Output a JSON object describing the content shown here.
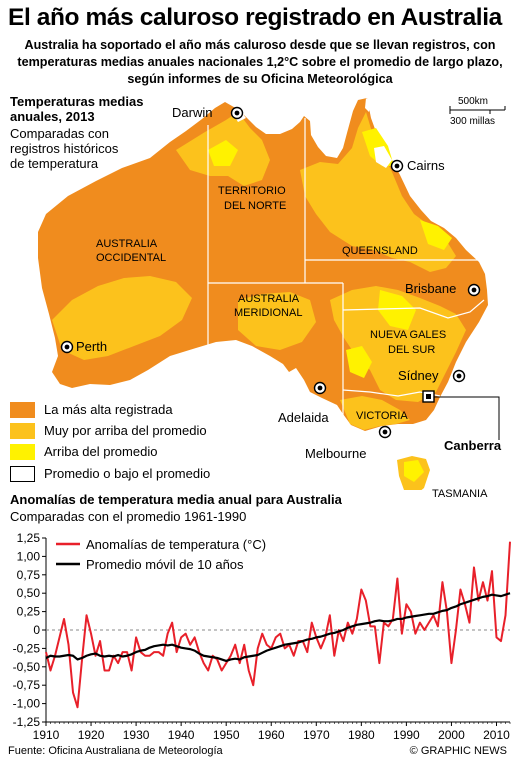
{
  "title": "El año más caluroso registrado en Australia",
  "subtitle": "Australia ha soportado el año más caluroso desde que se llevan registros, con temperaturas medias anuales nacionales 1,2°C sobre el promedio de largo plazo, según informes de su Oficina Meteorológica",
  "map": {
    "heading": "Temperaturas medias anuales, 2013",
    "subheading": "Comparadas con registros históricos de temperatura",
    "scale_km": "500km",
    "scale_mi": "300 millas",
    "regions": {
      "wa_1": "AUSTRALIA",
      "wa_2": "OCCIDENTAL",
      "nt_1": "TERRITORIO",
      "nt_2": "DEL NORTE",
      "qld": "QUEENSLAND",
      "sa_1": "AUSTRALIA",
      "sa_2": "MERIDIONAL",
      "nsw_1": "NUEVA GALES",
      "nsw_2": "DEL SUR",
      "vic": "VICTORIA",
      "tas": "TASMANIA"
    },
    "cities": {
      "darwin": "Darwin",
      "cairns": "Cairns",
      "brisbane": "Brisbane",
      "perth": "Perth",
      "adelaida": "Adelaida",
      "sydney": "Sídney",
      "melbourne": "Melbourne",
      "canberra": "Canberra"
    },
    "legend": [
      {
        "label": "La más alta registrada",
        "color": "#f08c1e"
      },
      {
        "label": "Muy por arriba del promedio",
        "color": "#fcc21c"
      },
      {
        "label": "Arriba del promedio",
        "color": "#fff200"
      },
      {
        "label": "Promedio o bajo el promedio",
        "color": "#ffffff"
      }
    ]
  },
  "chart_heading": "Anomalías de temperatura media anual para Australia",
  "chart_subheading": "Comparadas con el promedio 1961-1990",
  "chart_data": {
    "type": "line",
    "title": "Anomalías de temperatura media anual para Australia",
    "subtitle": "Comparadas con el promedio 1961-1990",
    "xlabel": "",
    "ylabel": "",
    "xlim": [
      1910,
      2013
    ],
    "ylim": [
      -1.25,
      1.25
    ],
    "xticks": [
      "1910",
      "1920",
      "1930",
      "1940",
      "1950",
      "1960",
      "1970",
      "1980",
      "1990",
      "2000",
      "2010"
    ],
    "yticks": [
      "1,25",
      "1,00",
      "0,75",
      "0,50",
      "0,25",
      "0",
      "-0,25",
      "-0,50",
      "-0,75",
      "-1,00",
      "-1,25"
    ],
    "grid": false,
    "legend_position": "top-left",
    "x": [
      1910,
      1911,
      1912,
      1913,
      1914,
      1915,
      1916,
      1917,
      1918,
      1919,
      1920,
      1921,
      1922,
      1923,
      1924,
      1925,
      1926,
      1927,
      1928,
      1929,
      1930,
      1931,
      1932,
      1933,
      1934,
      1935,
      1936,
      1937,
      1938,
      1939,
      1940,
      1941,
      1942,
      1943,
      1944,
      1945,
      1946,
      1947,
      1948,
      1949,
      1950,
      1951,
      1952,
      1953,
      1954,
      1955,
      1956,
      1957,
      1958,
      1959,
      1960,
      1961,
      1962,
      1963,
      1964,
      1965,
      1966,
      1967,
      1968,
      1969,
      1970,
      1971,
      1972,
      1973,
      1974,
      1975,
      1976,
      1977,
      1978,
      1979,
      1980,
      1981,
      1982,
      1983,
      1984,
      1985,
      1986,
      1987,
      1988,
      1989,
      1990,
      1991,
      1992,
      1993,
      1994,
      1995,
      1996,
      1997,
      1998,
      1999,
      2000,
      2001,
      2002,
      2003,
      2004,
      2005,
      2006,
      2007,
      2008,
      2009,
      2010,
      2011,
      2012,
      2013
    ],
    "series": [
      {
        "name": "Anomalías de temperatura (°C)",
        "color": "#e8202a",
        "values": [
          -0.3,
          -0.55,
          -0.35,
          -0.1,
          0.15,
          -0.2,
          -0.85,
          -1.05,
          -0.4,
          0.2,
          -0.05,
          -0.35,
          -0.15,
          -0.55,
          -0.55,
          -0.35,
          -0.45,
          -0.3,
          -0.3,
          -0.55,
          -0.1,
          -0.3,
          -0.35,
          -0.35,
          -0.3,
          -0.3,
          -0.35,
          -0.05,
          0.1,
          -0.3,
          -0.1,
          -0.05,
          -0.2,
          -0.1,
          -0.3,
          -0.45,
          -0.55,
          -0.35,
          -0.4,
          -0.55,
          -0.45,
          -0.35,
          -0.2,
          -0.45,
          -0.2,
          -0.55,
          -0.75,
          -0.25,
          -0.05,
          -0.2,
          -0.25,
          -0.1,
          -0.05,
          -0.25,
          -0.2,
          -0.35,
          -0.15,
          -0.15,
          -0.3,
          0.1,
          -0.1,
          -0.25,
          -0.1,
          0.2,
          -0.35,
          0.0,
          -0.15,
          0.1,
          -0.05,
          0.15,
          0.55,
          0.4,
          0.05,
          0.05,
          -0.45,
          0.1,
          0.05,
          0.15,
          0.7,
          -0.05,
          0.35,
          0.25,
          -0.05,
          0.1,
          0.0,
          0.1,
          0.2,
          0.05,
          0.65,
          0.25,
          -0.45,
          0.0,
          0.55,
          0.35,
          0.1,
          0.85,
          0.4,
          0.65,
          0.4,
          0.8,
          -0.1,
          -0.15,
          0.2,
          1.2
        ]
      },
      {
        "name": "Promedio móvil de 10 años",
        "color": "#000000",
        "values": [
          -0.38,
          -0.35,
          -0.36,
          -0.36,
          -0.35,
          -0.34,
          -0.35,
          -0.4,
          -0.38,
          -0.35,
          -0.33,
          -0.32,
          -0.35,
          -0.36,
          -0.35,
          -0.36,
          -0.34,
          -0.36,
          -0.35,
          -0.33,
          -0.3,
          -0.28,
          -0.27,
          -0.24,
          -0.22,
          -0.21,
          -0.2,
          -0.21,
          -0.2,
          -0.22,
          -0.24,
          -0.25,
          -0.26,
          -0.28,
          -0.32,
          -0.35,
          -0.36,
          -0.37,
          -0.38,
          -0.4,
          -0.42,
          -0.4,
          -0.39,
          -0.4,
          -0.37,
          -0.36,
          -0.35,
          -0.34,
          -0.31,
          -0.28,
          -0.26,
          -0.24,
          -0.22,
          -0.2,
          -0.19,
          -0.18,
          -0.17,
          -0.15,
          -0.13,
          -0.12,
          -0.1,
          -0.09,
          -0.07,
          -0.05,
          -0.04,
          -0.02,
          0.0,
          0.03,
          0.05,
          0.07,
          0.08,
          0.09,
          0.1,
          0.12,
          0.13,
          0.12,
          0.12,
          0.13,
          0.15,
          0.15,
          0.17,
          0.18,
          0.19,
          0.2,
          0.21,
          0.22,
          0.22,
          0.24,
          0.26,
          0.27,
          0.3,
          0.32,
          0.35,
          0.37,
          0.39,
          0.41,
          0.43,
          0.45,
          0.46,
          0.48,
          0.47,
          0.46,
          0.48,
          0.5
        ]
      }
    ]
  },
  "footer": {
    "source": "Fuente: Oficina Australiana de Meteorología",
    "credit": "© GRAPHIC NEWS"
  }
}
